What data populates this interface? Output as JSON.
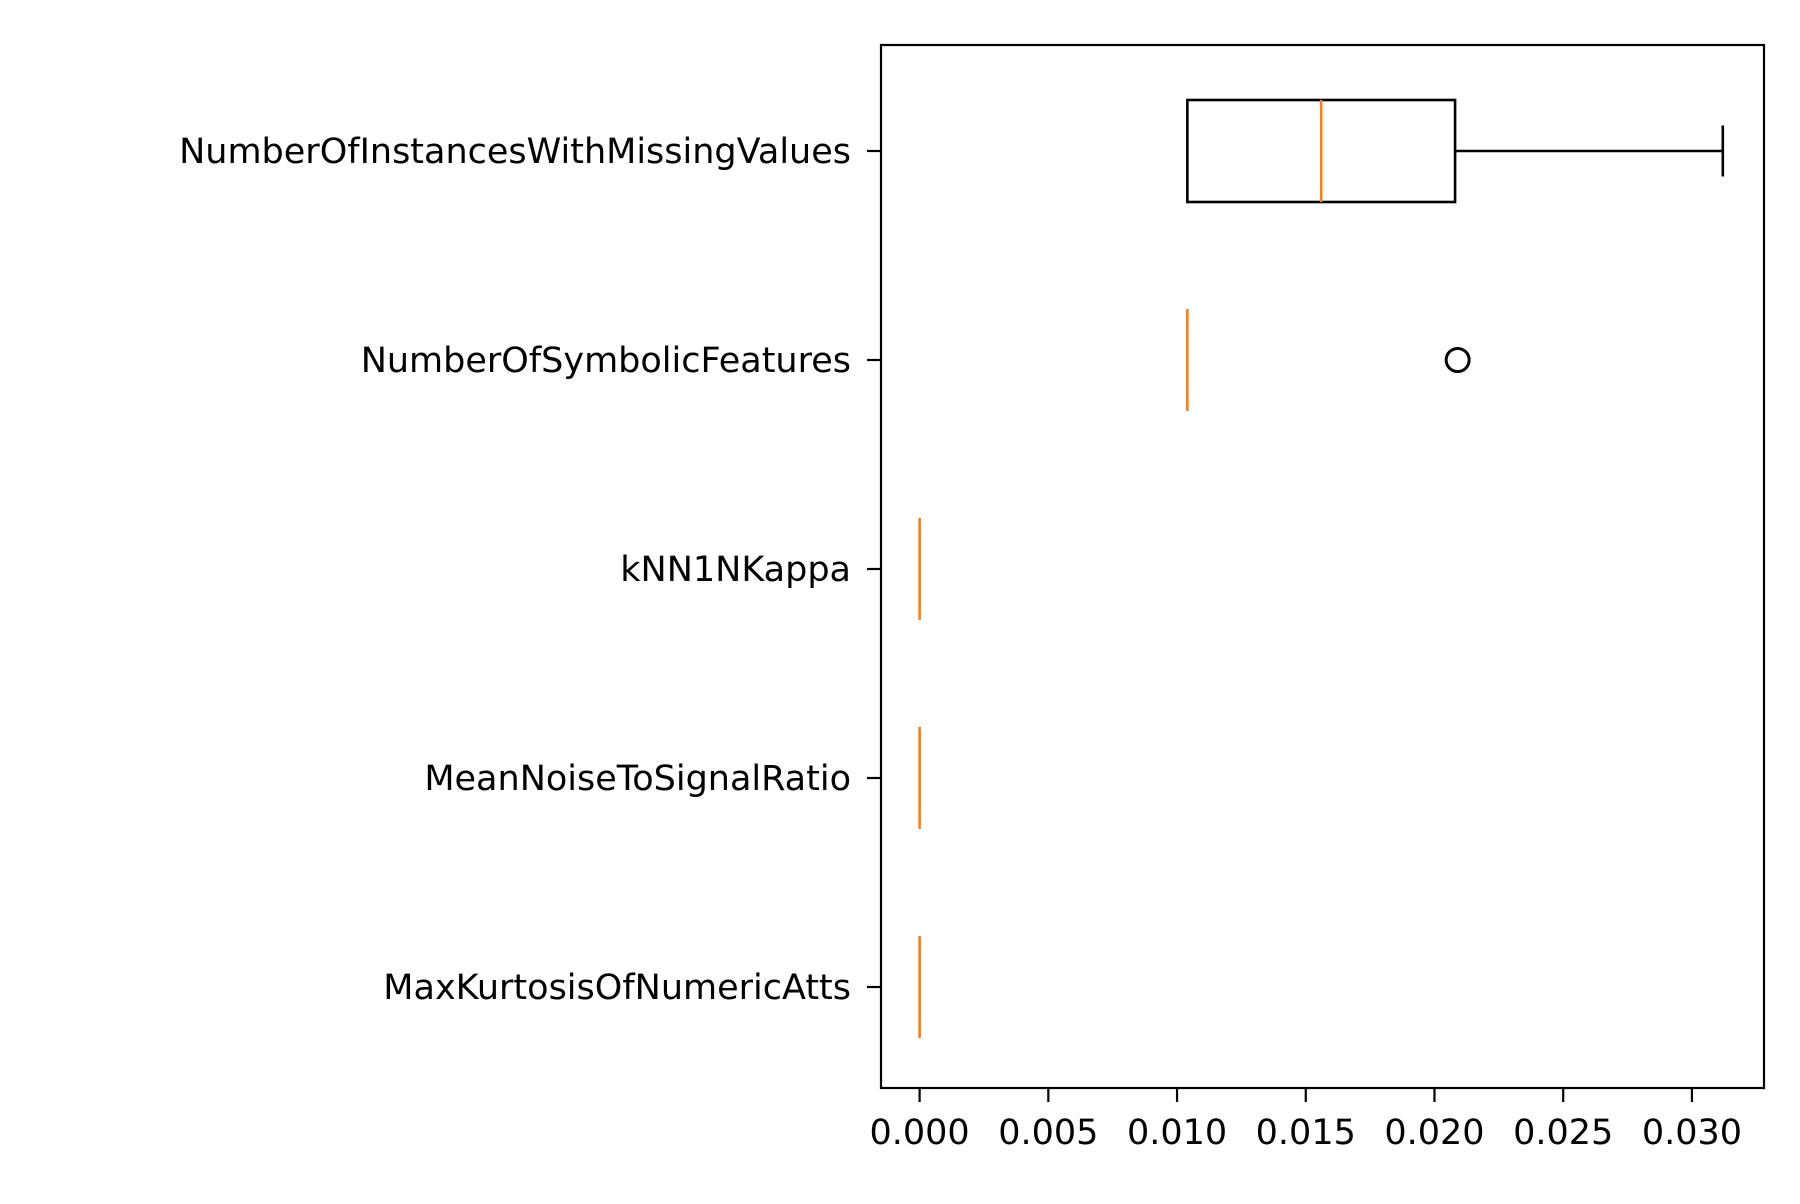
{
  "chart_data": {
    "type": "boxplot",
    "orientation": "horizontal",
    "title": "",
    "xlabel": "",
    "ylabel": "",
    "xlim": [
      -0.0015,
      0.0328
    ],
    "xticks": [
      0.0,
      0.005,
      0.01,
      0.015,
      0.02,
      0.025,
      0.03
    ],
    "xtick_labels": [
      "0.000",
      "0.005",
      "0.010",
      "0.015",
      "0.020",
      "0.025",
      "0.030"
    ],
    "grid": false,
    "box_color": "#000000",
    "median_color": "#ff7f0e",
    "categories": [
      "NumberOfInstancesWithMissingValues",
      "NumberOfSymbolicFeatures",
      "kNN1NKappa",
      "MeanNoiseToSignalRatio",
      "MaxKurtosisOfNumericAtts"
    ],
    "boxes": [
      {
        "label": "NumberOfInstancesWithMissingValues",
        "whislo": 0.0104,
        "q1": 0.0104,
        "median": 0.0156,
        "q3": 0.0208,
        "whishi": 0.0312,
        "fliers": []
      },
      {
        "label": "NumberOfSymbolicFeatures",
        "whislo": 0.0104,
        "q1": 0.0104,
        "median": 0.0104,
        "q3": 0.0104,
        "whishi": 0.0104,
        "fliers": [
          0.0209
        ]
      },
      {
        "label": "kNN1NKappa",
        "whislo": 0.0,
        "q1": 0.0,
        "median": 0.0,
        "q3": 0.0,
        "whishi": 0.0,
        "fliers": []
      },
      {
        "label": "MeanNoiseToSignalRatio",
        "whislo": 0.0,
        "q1": 0.0,
        "median": 0.0,
        "q3": 0.0,
        "whishi": 0.0,
        "fliers": []
      },
      {
        "label": "MaxKurtosisOfNumericAtts",
        "whislo": 0.0,
        "q1": 0.0,
        "median": 0.0,
        "q3": 0.0,
        "whishi": 0.0,
        "fliers": []
      }
    ]
  }
}
